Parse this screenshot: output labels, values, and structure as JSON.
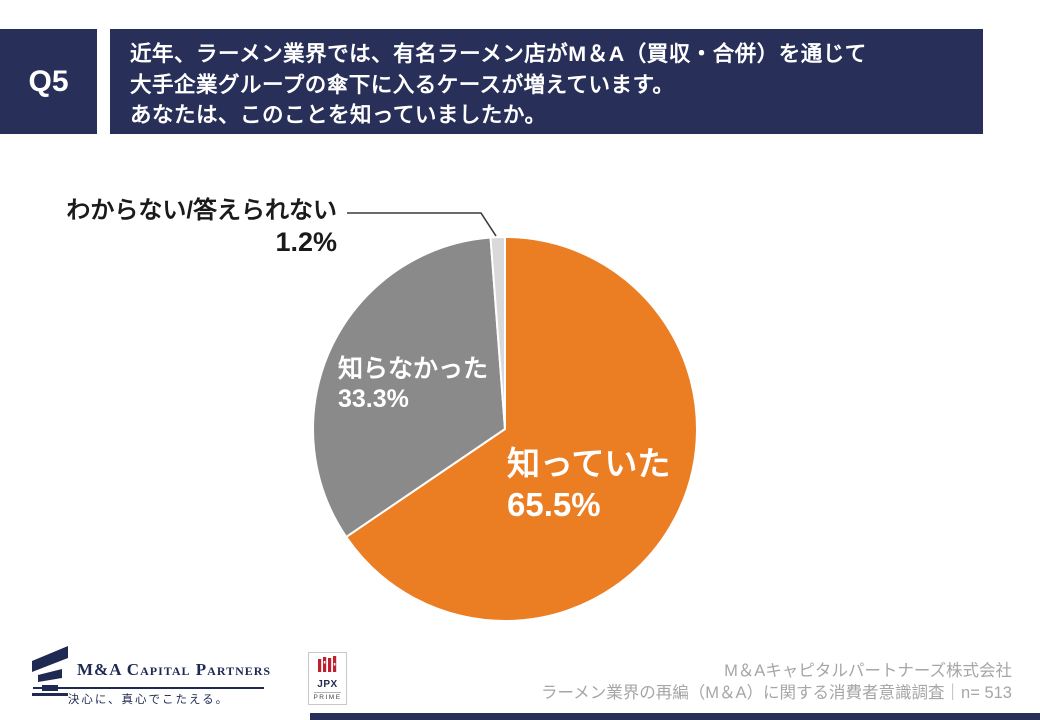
{
  "question": {
    "number": "Q5",
    "line1": "近年、ラーメン業界では、有名ラーメン店がM＆A（買収・合併）を通じて",
    "line2": "大手企業グループの傘下に入るケースが増えています。",
    "line3": "あなたは、このことを知っていましたか。"
  },
  "chart_data": {
    "type": "pie",
    "unit": "%",
    "n_shown": 513,
    "start_angle": "12 o'clock",
    "direction": "clockwise",
    "separator_color": "#FFFFFF",
    "slices": [
      {
        "label": "知っていた",
        "value": 65.5,
        "display": "65.5%",
        "color": "#EB7D23",
        "label_color": "#FFFFFF"
      },
      {
        "label": "知らなかった",
        "value": 33.3,
        "display": "33.3%",
        "color": "#8A8A8A",
        "label_color": "#FFFFFF"
      },
      {
        "label": "わからない/答えられない",
        "value": 1.2,
        "display": "1.2%",
        "color": "#D9D9D9",
        "label_color": "#1A1A1A"
      }
    ]
  },
  "footer": {
    "logo": {
      "name": "M&A Capital Partners",
      "tagline": "決心に、真心でこたえる。"
    },
    "jpx": {
      "top": "JPX",
      "bottom": "PRIME"
    },
    "credit_line1": "M＆Aキャピタルパートナーズ株式会社",
    "credit_line2": "ラーメン業界の再編（M＆A）に関する消費者意識調査｜n= 513"
  },
  "colors": {
    "header_navy": "#282F58",
    "leader_line": "#3A3A3A",
    "credit_gray": "#A6A6A6"
  }
}
